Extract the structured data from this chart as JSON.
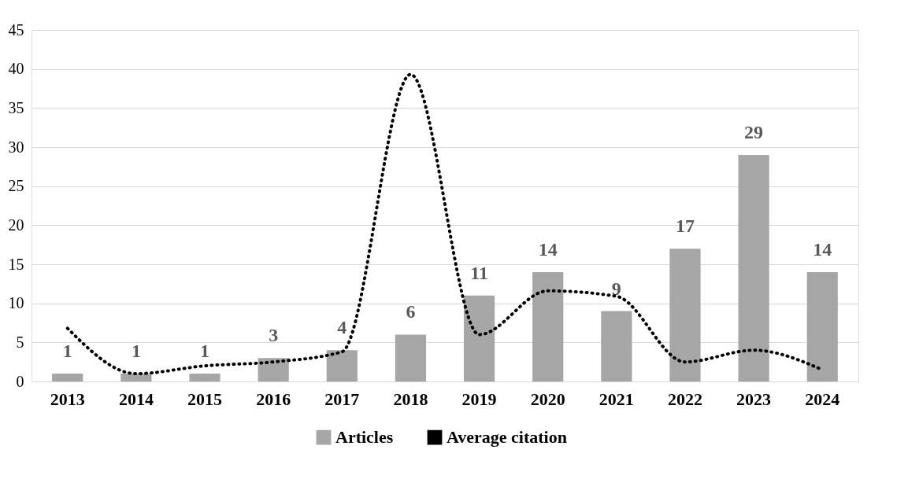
{
  "chart_data": {
    "type": "bar",
    "categories": [
      "2013",
      "2014",
      "2015",
      "2016",
      "2017",
      "2018",
      "2019",
      "2020",
      "2021",
      "2022",
      "2023",
      "2024"
    ],
    "series": [
      {
        "name": "Articles",
        "color": "#a6a6a6",
        "values": [
          1,
          1,
          1,
          3,
          4,
          6,
          11,
          14,
          9,
          17,
          29,
          14
        ],
        "value_labels": [
          "1",
          "1",
          "1",
          "3",
          "4",
          "6",
          "11",
          "14",
          "9",
          "17",
          "29",
          "14"
        ]
      },
      {
        "name": "Average citation",
        "type": "line",
        "color": "#000000",
        "line_style": "dotted",
        "values": [
          6.8,
          1.0,
          2.0,
          2.5,
          3.8,
          39.3,
          6.0,
          11.6,
          10.9,
          2.5,
          4.0,
          1.5
        ]
      }
    ],
    "ylim": [
      0,
      45
    ],
    "yticks": [
      0,
      5,
      10,
      15,
      20,
      25,
      30,
      35,
      40,
      45
    ],
    "grid": "y",
    "legend": "bottom"
  }
}
